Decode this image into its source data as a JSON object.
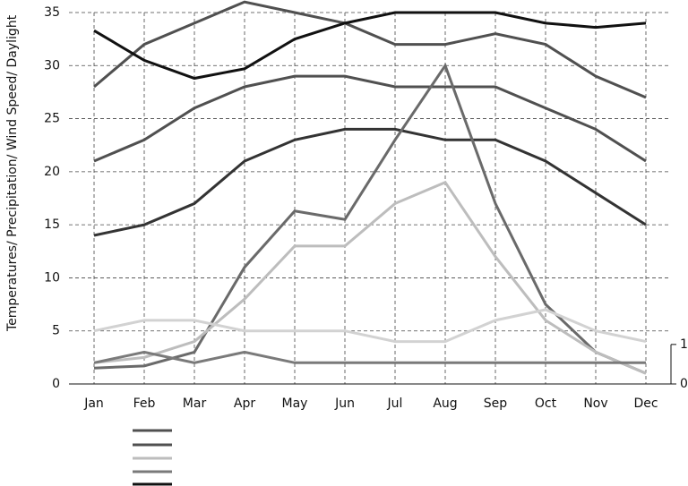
{
  "chart_data": {
    "type": "line",
    "y_label": "Temperatures/ Precipitation/ Wind Speed/ Daylight",
    "categories": [
      "Jan",
      "Feb",
      "Mar",
      "Apr",
      "May",
      "Jun",
      "Jul",
      "Aug",
      "Sep",
      "Oct",
      "Nov",
      "Dec"
    ],
    "series": [
      {
        "color": "#505050",
        "values": [
          28,
          32,
          34,
          36,
          35,
          34,
          32,
          32,
          33,
          32,
          29,
          27
        ]
      },
      {
        "color": "#505050",
        "values": [
          21,
          23,
          26,
          28,
          29,
          29,
          28,
          28,
          28,
          26,
          24,
          21
        ]
      },
      {
        "color": "#333333",
        "values": [
          14,
          15,
          17,
          21,
          23,
          24,
          24,
          23,
          23,
          21,
          18,
          15
        ]
      },
      {
        "color": "#6a6a6a",
        "values": [
          1.5,
          1.7,
          3,
          11,
          16.3,
          15.5,
          23,
          30,
          17,
          7.5,
          3,
          1
        ]
      },
      {
        "color": "#bdbdbd",
        "values": [
          2,
          2.5,
          4,
          8,
          13,
          13,
          17,
          19,
          12,
          6,
          3,
          1
        ]
      },
      {
        "color": "#d2d2d2",
        "values": [
          5,
          6,
          6,
          5,
          5,
          5,
          4,
          4,
          6,
          7,
          5,
          4
        ]
      },
      {
        "color": "#7a7a7a",
        "values": [
          2,
          3,
          2,
          3,
          2,
          2,
          2,
          2,
          2,
          2,
          2,
          2
        ]
      },
      {
        "color": "#111111",
        "values": [
          33.3,
          30.5,
          28.8,
          29.7,
          32.5,
          34,
          35,
          35,
          35,
          34,
          33.6,
          34
        ]
      }
    ],
    "ylim": [
      0,
      35
    ],
    "yticks": [
      0,
      5,
      10,
      15,
      20,
      25,
      30,
      35
    ],
    "y2lim": [
      0,
      9.4
    ],
    "y2ticks": [
      0,
      1
    ],
    "grid": true
  }
}
